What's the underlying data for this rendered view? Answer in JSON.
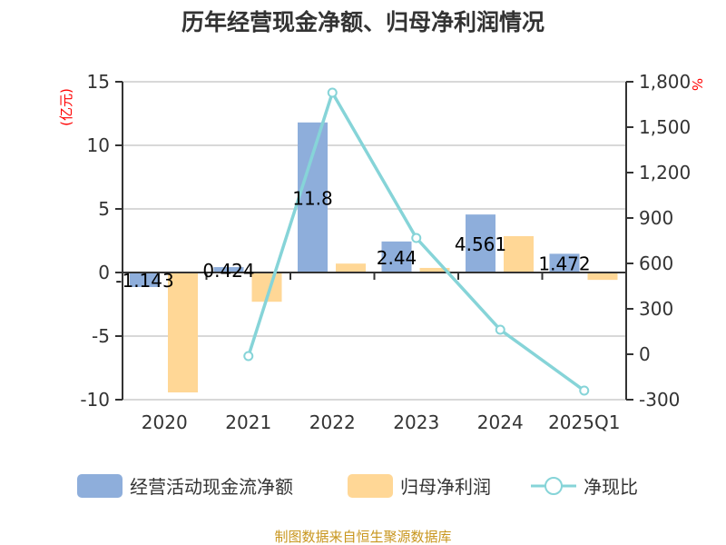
{
  "chart_data": {
    "type": "bar",
    "title": "历年经营现金净额、归母净利润情况",
    "categories": [
      "2020",
      "2021",
      "2022",
      "2023",
      "2024",
      "2025Q1"
    ],
    "left_axis": {
      "unit": "(亿元)",
      "ylim": [
        -10,
        15
      ],
      "ticks": [
        -10,
        -5,
        0,
        5,
        10,
        15
      ]
    },
    "right_axis": {
      "unit": "%",
      "ylim": [
        -300,
        1800
      ],
      "ticks": [
        -300,
        0,
        300,
        600,
        900,
        1200,
        1500,
        1800
      ],
      "tick_labels": [
        "-300",
        "0",
        "300",
        "600",
        "900",
        "1,200",
        "1,500",
        "1,800"
      ]
    },
    "series": [
      {
        "name": "经营活动现金流净额",
        "type": "bar",
        "axis": "left",
        "color": "#8eaedb",
        "values": [
          -1.143,
          0.424,
          11.8,
          2.44,
          4.561,
          1.472
        ],
        "labels": [
          "-1.143",
          "0.424",
          "11.8",
          "2.44",
          "4.561",
          "1.472"
        ]
      },
      {
        "name": "归母净利润",
        "type": "bar",
        "axis": "left",
        "color": "#ffd796",
        "values": [
          -9.43,
          -2.3,
          0.7,
          0.36,
          2.86,
          -0.58
        ]
      },
      {
        "name": "净现比",
        "type": "line",
        "axis": "right",
        "color": "#86d4d8",
        "values": [
          null,
          -12,
          1728,
          768,
          162,
          -240
        ]
      }
    ],
    "legend_position": "bottom",
    "grid": true
  },
  "footer": "制图数据来自恒生聚源数据库"
}
